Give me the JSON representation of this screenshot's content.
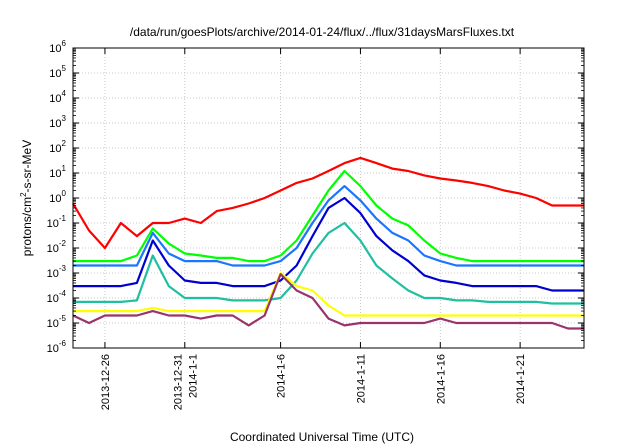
{
  "chart_data": {
    "type": "line",
    "title": "/data/run/goesPlots/archive/2014-01-24/flux/../flux/31daysMarsFluxes.txt",
    "xlabel": "Coordinated Universal Time (UTC)",
    "ylabel": "protons/cm²-s-sr-MeV",
    "ylabel_parts": {
      "pre": "protons/cm",
      "sup": "2",
      "post": "-s-sr-MeV"
    },
    "xlim": [
      "2013-12-24",
      "2014-01-25"
    ],
    "ylim": [
      1e-06,
      1000000.0
    ],
    "yscale": "log",
    "grid": true,
    "legend": "none",
    "y_ticks": [
      {
        "value": 1e-06,
        "base": "10",
        "exp": "-6"
      },
      {
        "value": 1e-05,
        "base": "10",
        "exp": "-5"
      },
      {
        "value": 0.0001,
        "base": "10",
        "exp": "-4"
      },
      {
        "value": 0.001,
        "base": "10",
        "exp": "-3"
      },
      {
        "value": 0.01,
        "base": "10",
        "exp": "-2"
      },
      {
        "value": 0.1,
        "base": "10",
        "exp": "-1"
      },
      {
        "value": 1,
        "base": "10",
        "exp": "0"
      },
      {
        "value": 10,
        "base": "10",
        "exp": "1"
      },
      {
        "value": 100,
        "base": "10",
        "exp": "2"
      },
      {
        "value": 1000,
        "base": "10",
        "exp": "3"
      },
      {
        "value": 10000,
        "base": "10",
        "exp": "4"
      },
      {
        "value": 100000,
        "base": "10",
        "exp": "5"
      },
      {
        "value": 1000000,
        "base": "10",
        "exp": "6"
      }
    ],
    "x_ticks": [
      {
        "date": "2013-12-26",
        "labels": [
          "2013-12-26"
        ]
      },
      {
        "date": "2013-12-31",
        "labels": [
          "2013-12-31",
          "2014-1-1"
        ]
      },
      {
        "date": "2014-01-06",
        "labels": [
          "2014-1-6"
        ]
      },
      {
        "date": "2014-01-11",
        "labels": [
          "2014-1-11"
        ]
      },
      {
        "date": "2014-01-16",
        "labels": [
          "2014-1-16"
        ]
      },
      {
        "date": "2014-01-21",
        "labels": [
          "2014-1-21"
        ]
      }
    ],
    "series": [
      {
        "color": "#ff0000",
        "x": [
          "2013-12-24",
          "2013-12-25",
          "2013-12-26",
          "2013-12-27",
          "2013-12-28",
          "2013-12-29",
          "2013-12-30",
          "2013-12-31",
          "2014-01-01",
          "2014-01-02",
          "2014-01-03",
          "2014-01-04",
          "2014-01-05",
          "2014-01-06",
          "2014-01-07",
          "2014-01-08",
          "2014-01-09",
          "2014-01-10",
          "2014-01-11",
          "2014-01-12",
          "2014-01-13",
          "2014-01-14",
          "2014-01-15",
          "2014-01-16",
          "2014-01-17",
          "2014-01-18",
          "2014-01-19",
          "2014-01-20",
          "2014-01-21",
          "2014-01-22",
          "2014-01-23",
          "2014-01-24",
          "2014-01-25"
        ],
        "y": [
          0.6,
          0.05,
          0.01,
          0.1,
          0.03,
          0.1,
          0.1,
          0.15,
          0.1,
          0.3,
          0.4,
          0.6,
          1.0,
          2.0,
          4.0,
          6.0,
          12,
          25,
          40,
          25,
          15,
          12,
          8,
          6,
          5,
          4,
          3,
          2,
          1.5,
          1.0,
          0.5,
          0.5,
          0.5
        ]
      },
      {
        "color": "#00ff00",
        "x": [
          "2013-12-24",
          "2013-12-25",
          "2013-12-26",
          "2013-12-27",
          "2013-12-28",
          "2013-12-29",
          "2013-12-30",
          "2013-12-31",
          "2014-01-01",
          "2014-01-02",
          "2014-01-03",
          "2014-01-04",
          "2014-01-05",
          "2014-01-06",
          "2014-01-07",
          "2014-01-08",
          "2014-01-09",
          "2014-01-10",
          "2014-01-11",
          "2014-01-12",
          "2014-01-13",
          "2014-01-14",
          "2014-01-15",
          "2014-01-16",
          "2014-01-17",
          "2014-01-18",
          "2014-01-19",
          "2014-01-20",
          "2014-01-21",
          "2014-01-22",
          "2014-01-23",
          "2014-01-24",
          "2014-01-25"
        ],
        "y": [
          0.003,
          0.003,
          0.003,
          0.003,
          0.005,
          0.06,
          0.015,
          0.006,
          0.005,
          0.004,
          0.004,
          0.003,
          0.003,
          0.005,
          0.02,
          0.2,
          2.0,
          12,
          3,
          0.5,
          0.15,
          0.08,
          0.02,
          0.006,
          0.004,
          0.003,
          0.003,
          0.003,
          0.003,
          0.003,
          0.003,
          0.003,
          0.003
        ]
      },
      {
        "color": "#1a75ff",
        "x": [
          "2013-12-24",
          "2013-12-25",
          "2013-12-26",
          "2013-12-27",
          "2013-12-28",
          "2013-12-29",
          "2013-12-30",
          "2013-12-31",
          "2014-01-01",
          "2014-01-02",
          "2014-01-03",
          "2014-01-04",
          "2014-01-05",
          "2014-01-06",
          "2014-01-07",
          "2014-01-08",
          "2014-01-09",
          "2014-01-10",
          "2014-01-11",
          "2014-01-12",
          "2014-01-13",
          "2014-01-14",
          "2014-01-15",
          "2014-01-16",
          "2014-01-17",
          "2014-01-18",
          "2014-01-19",
          "2014-01-20",
          "2014-01-21",
          "2014-01-22",
          "2014-01-23",
          "2014-01-24",
          "2014-01-25"
        ],
        "y": [
          0.002,
          0.002,
          0.002,
          0.002,
          0.002,
          0.04,
          0.006,
          0.003,
          0.003,
          0.003,
          0.002,
          0.002,
          0.002,
          0.003,
          0.01,
          0.1,
          0.8,
          3.0,
          0.8,
          0.15,
          0.04,
          0.02,
          0.005,
          0.003,
          0.002,
          0.002,
          0.002,
          0.002,
          0.002,
          0.002,
          0.002,
          0.002,
          0.002
        ]
      },
      {
        "color": "#0000d0",
        "x": [
          "2013-12-24",
          "2013-12-25",
          "2013-12-26",
          "2013-12-27",
          "2013-12-28",
          "2013-12-29",
          "2013-12-30",
          "2013-12-31",
          "2014-01-01",
          "2014-01-02",
          "2014-01-03",
          "2014-01-04",
          "2014-01-05",
          "2014-01-06",
          "2014-01-07",
          "2014-01-08",
          "2014-01-09",
          "2014-01-10",
          "2014-01-11",
          "2014-01-12",
          "2014-01-13",
          "2014-01-14",
          "2014-01-15",
          "2014-01-16",
          "2014-01-17",
          "2014-01-18",
          "2014-01-19",
          "2014-01-20",
          "2014-01-21",
          "2014-01-22",
          "2014-01-23",
          "2014-01-24",
          "2014-01-25"
        ],
        "y": [
          0.0003,
          0.0003,
          0.0003,
          0.0003,
          0.0004,
          0.02,
          0.002,
          0.0005,
          0.0004,
          0.0004,
          0.0003,
          0.0003,
          0.0003,
          0.0005,
          0.002,
          0.03,
          0.4,
          1.0,
          0.25,
          0.03,
          0.008,
          0.003,
          0.0008,
          0.0005,
          0.0004,
          0.0003,
          0.0003,
          0.0003,
          0.0003,
          0.0003,
          0.0002,
          0.0002,
          0.0002
        ]
      },
      {
        "color": "#1fbf9f",
        "x": [
          "2013-12-24",
          "2013-12-25",
          "2013-12-26",
          "2013-12-27",
          "2013-12-28",
          "2013-12-29",
          "2013-12-30",
          "2013-12-31",
          "2014-01-01",
          "2014-01-02",
          "2014-01-03",
          "2014-01-04",
          "2014-01-05",
          "2014-01-06",
          "2014-01-07",
          "2014-01-08",
          "2014-01-09",
          "2014-01-10",
          "2014-01-11",
          "2014-01-12",
          "2014-01-13",
          "2014-01-14",
          "2014-01-15",
          "2014-01-16",
          "2014-01-17",
          "2014-01-18",
          "2014-01-19",
          "2014-01-20",
          "2014-01-21",
          "2014-01-22",
          "2014-01-23",
          "2014-01-24",
          "2014-01-25"
        ],
        "y": [
          7e-05,
          7e-05,
          7e-05,
          7e-05,
          8e-05,
          0.005,
          0.0003,
          0.0001,
          0.0001,
          0.0001,
          8e-05,
          8e-05,
          8e-05,
          0.0001,
          0.0005,
          0.006,
          0.04,
          0.1,
          0.02,
          0.002,
          0.0006,
          0.0002,
          0.0001,
          0.0001,
          8e-05,
          8e-05,
          7e-05,
          7e-05,
          7e-05,
          7e-05,
          6e-05,
          6e-05,
          6e-05
        ]
      },
      {
        "color": "#ffff00",
        "x": [
          "2013-12-24",
          "2013-12-25",
          "2013-12-26",
          "2013-12-27",
          "2013-12-28",
          "2013-12-29",
          "2013-12-30",
          "2013-12-31",
          "2014-01-01",
          "2014-01-02",
          "2014-01-03",
          "2014-01-04",
          "2014-01-05",
          "2014-01-06",
          "2014-01-07",
          "2014-01-08",
          "2014-01-09",
          "2014-01-10",
          "2014-01-11",
          "2014-01-12",
          "2014-01-13",
          "2014-01-14",
          "2014-01-15",
          "2014-01-16",
          "2014-01-17",
          "2014-01-18",
          "2014-01-19",
          "2014-01-20",
          "2014-01-21",
          "2014-01-22",
          "2014-01-23",
          "2014-01-24",
          "2014-01-25"
        ],
        "y": [
          3e-05,
          3e-05,
          3e-05,
          3e-05,
          3e-05,
          4e-05,
          3e-05,
          3e-05,
          3e-05,
          3e-05,
          3e-05,
          3e-05,
          3e-05,
          0.001,
          0.0003,
          0.0002,
          5e-05,
          2e-05,
          2e-05,
          2e-05,
          2e-05,
          2e-05,
          2e-05,
          2e-05,
          2e-05,
          2e-05,
          2e-05,
          2e-05,
          2e-05,
          2e-05,
          2e-05,
          2e-05,
          2e-05
        ]
      },
      {
        "color": "#99336b",
        "x": [
          "2013-12-24",
          "2013-12-25",
          "2013-12-26",
          "2013-12-27",
          "2013-12-28",
          "2013-12-29",
          "2013-12-30",
          "2013-12-31",
          "2014-01-01",
          "2014-01-02",
          "2014-01-03",
          "2014-01-04",
          "2014-01-05",
          "2014-01-06",
          "2014-01-07",
          "2014-01-08",
          "2014-01-09",
          "2014-01-10",
          "2014-01-11",
          "2014-01-12",
          "2014-01-13",
          "2014-01-14",
          "2014-01-15",
          "2014-01-16",
          "2014-01-17",
          "2014-01-18",
          "2014-01-19",
          "2014-01-20",
          "2014-01-21",
          "2014-01-22",
          "2014-01-23",
          "2014-01-24",
          "2014-01-25"
        ],
        "y": [
          2e-05,
          1e-05,
          2e-05,
          2e-05,
          2e-05,
          3e-05,
          2e-05,
          2e-05,
          1.5e-05,
          2e-05,
          2e-05,
          8e-06,
          2e-05,
          0.0009,
          0.0002,
          0.0001,
          1.5e-05,
          8e-06,
          1e-05,
          1e-05,
          1e-05,
          1e-05,
          1e-05,
          1.5e-05,
          1e-05,
          1e-05,
          1e-05,
          1e-05,
          1e-05,
          1e-05,
          1e-05,
          6e-06,
          6e-06
        ]
      }
    ]
  }
}
